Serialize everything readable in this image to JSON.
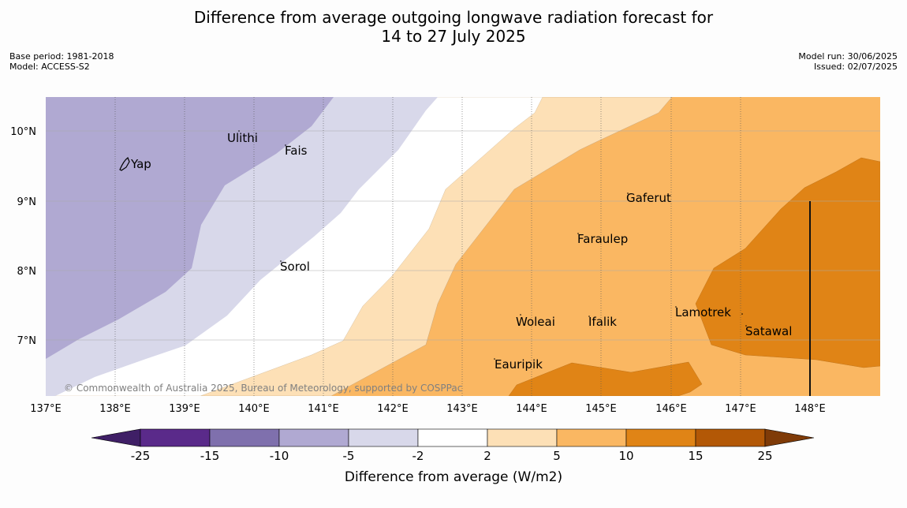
{
  "title": {
    "line1": "Difference from average outgoing longwave radiation forecast for",
    "line2": "14 to 27 July 2025"
  },
  "meta_left": {
    "base_period": "Base period: 1981-2018",
    "model": "Model: ACCESS-S2"
  },
  "meta_right": {
    "model_run": "Model run: 30/06/2025",
    "issued": "Issued: 02/07/2025"
  },
  "map": {
    "lon_ticks": [
      "137°E",
      "138°E",
      "139°E",
      "140°E",
      "141°E",
      "142°E",
      "143°E",
      "144°E",
      "145°E",
      "146°E",
      "147°E",
      "148°E"
    ],
    "lat_ticks": [
      "10°N",
      "9°N",
      "8°N",
      "7°N"
    ],
    "places": [
      "Yap",
      "Ulithi",
      "Fais",
      "Sorol",
      "Gaferut",
      "Faraulep",
      "Woleai",
      "Ifalik",
      "Lamotrek",
      "Satawal",
      "Eauripik"
    ],
    "credit": "© Commonwealth of Australia 2025, Bureau of Meteorology, supported by COSPPac"
  },
  "colorbar": {
    "labels": [
      "-25",
      "-15",
      "-10",
      "-5",
      "-2",
      "2",
      "5",
      "10",
      "15",
      "25"
    ],
    "colors": [
      "#3f1f66",
      "#5a2a8a",
      "#7f70ad",
      "#b0a9d2",
      "#d8d8ea",
      "#ffffff",
      "#fde0b6",
      "#fab762",
      "#e08416",
      "#b35806",
      "#7f3b08"
    ],
    "title": "Difference from average (W/m2)"
  }
}
